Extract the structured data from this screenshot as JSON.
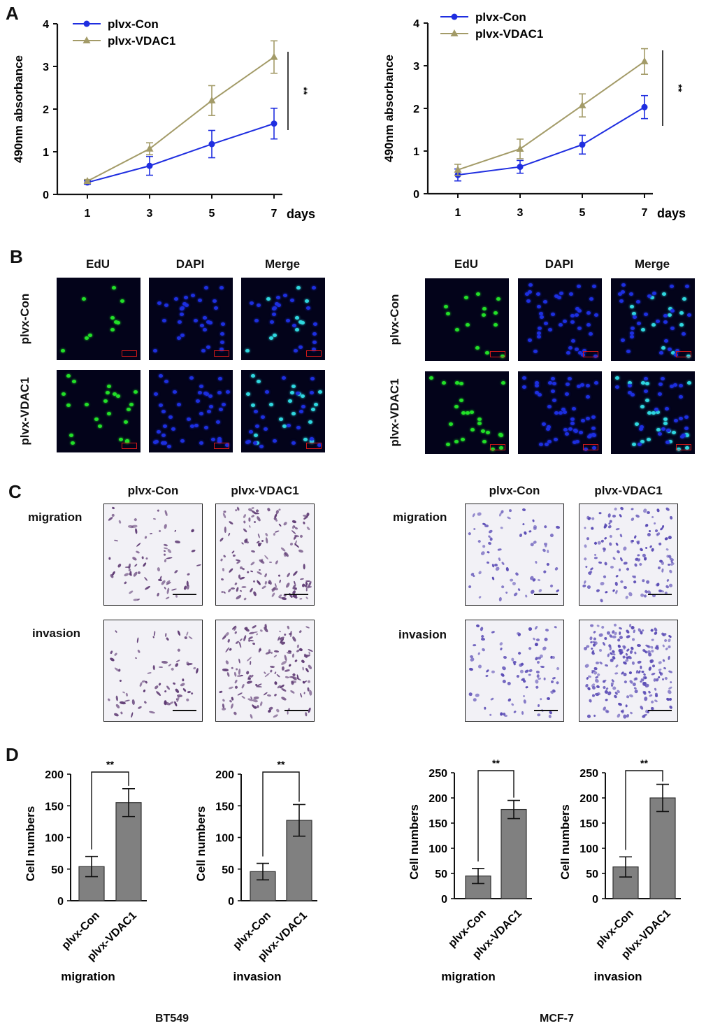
{
  "panels": {
    "A": "A",
    "B": "B",
    "C": "C",
    "D": "D"
  },
  "colors": {
    "con": "#1f2ee0",
    "vdac1": "#a39b68",
    "bar": "#808080",
    "edu": "#22e028",
    "dapi": "#1d2fe0",
    "merge": "#2fd8e0",
    "stain_bt549": "#5e3a73",
    "stain_mcf7": "#5a4bb5"
  },
  "panelA": {
    "legend": [
      "plvx-Con",
      "plvx-VDAC1"
    ],
    "ylabel": "490nm absorbance",
    "xunit": "days",
    "sig": "**",
    "yticks": [
      "0",
      "1",
      "2",
      "3",
      "4"
    ],
    "xticks": [
      "1",
      "3",
      "5",
      "7"
    ]
  },
  "panelB": {
    "columns": [
      "EdU",
      "DAPI",
      "Merge"
    ],
    "rows": [
      "plvx-Con",
      "plvx-VDAC1"
    ]
  },
  "panelC": {
    "columns": [
      "plvx-Con",
      "plvx-VDAC1"
    ],
    "rows": [
      "migration",
      "invasion"
    ]
  },
  "panelD": {
    "ylabel": "Cell numbers",
    "categories": [
      "plvx-Con",
      "plvx-VDAC1"
    ],
    "sig": "**",
    "titles": [
      "migration",
      "invasion",
      "migration",
      "invasion"
    ]
  },
  "cell_lines": [
    "BT549",
    "MCF-7"
  ],
  "chart_data": [
    {
      "type": "line",
      "panel": "A-left",
      "x": [
        1,
        3,
        5,
        7
      ],
      "xlabel": "days",
      "ylabel": "490nm absorbance",
      "ylim": [
        0,
        4
      ],
      "series": [
        {
          "name": "plvx-Con",
          "values": [
            0.28,
            0.67,
            1.18,
            1.66
          ],
          "errors": [
            0.04,
            0.22,
            0.32,
            0.36
          ]
        },
        {
          "name": "plvx-VDAC1",
          "values": [
            0.31,
            1.07,
            2.2,
            3.22
          ],
          "errors": [
            0.04,
            0.14,
            0.35,
            0.38
          ]
        }
      ]
    },
    {
      "type": "line",
      "panel": "A-right",
      "x": [
        1,
        3,
        5,
        7
      ],
      "xlabel": "days",
      "ylabel": "490nm absorbance",
      "ylim": [
        0,
        4
      ],
      "series": [
        {
          "name": "plvx-Con",
          "values": [
            0.44,
            0.63,
            1.15,
            2.03
          ],
          "errors": [
            0.14,
            0.15,
            0.22,
            0.27
          ]
        },
        {
          "name": "plvx-VDAC1",
          "values": [
            0.56,
            1.05,
            2.07,
            3.1
          ],
          "errors": [
            0.13,
            0.23,
            0.27,
            0.3
          ]
        }
      ]
    },
    {
      "type": "bar",
      "panel": "D-BT549-migration",
      "categories": [
        "plvx-Con",
        "plvx-VDAC1"
      ],
      "ylabel": "Cell numbers",
      "ylim": [
        0,
        200
      ],
      "values": [
        54,
        155
      ],
      "errors": [
        16,
        22
      ]
    },
    {
      "type": "bar",
      "panel": "D-BT549-invasion",
      "categories": [
        "plvx-Con",
        "plvx-VDAC1"
      ],
      "ylabel": "Cell numbers",
      "ylim": [
        0,
        200
      ],
      "values": [
        46,
        127
      ],
      "errors": [
        13,
        25
      ]
    },
    {
      "type": "bar",
      "panel": "D-MCF-7-migration",
      "categories": [
        "plvx-Con",
        "plvx-VDAC1"
      ],
      "ylabel": "Cell numbers",
      "ylim": [
        0,
        250
      ],
      "values": [
        45,
        177
      ],
      "errors": [
        15,
        18
      ]
    },
    {
      "type": "bar",
      "panel": "D-MCF-7-invasion",
      "categories": [
        "plvx-Con",
        "plvx-VDAC1"
      ],
      "ylabel": "Cell numbers",
      "ylim": [
        0,
        250
      ],
      "values": [
        63,
        200
      ],
      "errors": [
        20,
        27
      ]
    }
  ]
}
